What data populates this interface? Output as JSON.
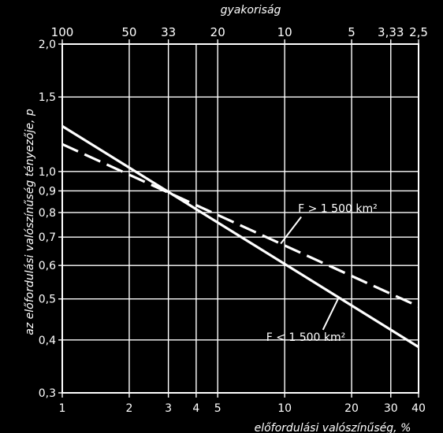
{
  "chart_data": {
    "type": "line",
    "title": "gyakoriság",
    "xlabel": "előfordulási valószínűség, %",
    "ylabel": "az előfordulási valószínűség tényezője, p",
    "x_scale": "log",
    "y_scale": "log",
    "xlim": [
      1,
      40
    ],
    "ylim": [
      0.3,
      2.0
    ],
    "grid": true,
    "x_ticks": [
      1,
      2,
      3,
      4,
      5,
      10,
      20,
      30,
      40
    ],
    "x_tick_labels": [
      "1",
      "2",
      "3",
      "4",
      "5",
      "10",
      "20",
      "30",
      "40"
    ],
    "y_ticks": [
      0.3,
      0.4,
      0.5,
      0.6,
      0.7,
      0.8,
      0.9,
      1.0,
      1.5,
      2.0
    ],
    "y_tick_labels": [
      "0,3",
      "0,4",
      "0,5",
      "0,6",
      "0,7",
      "0,8",
      "0,9",
      "1,0",
      "1,5",
      "2,0"
    ],
    "top_ticks": [
      {
        "x": 1,
        "label": "100"
      },
      {
        "x": 2,
        "label": "50"
      },
      {
        "x": 3,
        "label": "33"
      },
      {
        "x": 5,
        "label": "20"
      },
      {
        "x": 10,
        "label": "10"
      },
      {
        "x": 20,
        "label": "5"
      },
      {
        "x": 30,
        "label": "3,33"
      },
      {
        "x": 40,
        "label": "2,5"
      }
    ],
    "series": [
      {
        "name": "F < 1 500 km²",
        "style": "solid",
        "x": [
          1,
          40
        ],
        "y": [
          1.28,
          0.385
        ]
      },
      {
        "name": "F > 1 500 km²",
        "style": "dashed",
        "x": [
          1,
          40
        ],
        "y": [
          1.16,
          0.48
        ]
      }
    ],
    "annotations": [
      {
        "text": "F > 1 500 km²",
        "series": 1
      },
      {
        "text": "F < 1 500 km²",
        "series": 0
      }
    ],
    "colors": {
      "background": "#000000",
      "foreground": "#ffffff"
    }
  }
}
